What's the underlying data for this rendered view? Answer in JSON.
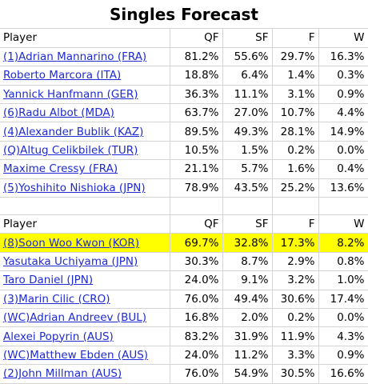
{
  "title": "Singles Forecast",
  "columns": [
    "Player",
    "QF",
    "SF",
    "F",
    "W"
  ],
  "group1": [
    {
      "player": "(1)Adrian Mannarino (FRA)",
      "qf": "81.2%",
      "sf": "55.6%",
      "f": "29.7%",
      "w": "16.3%"
    },
    {
      "player": "Roberto Marcora (ITA)",
      "qf": "18.8%",
      "sf": "6.4%",
      "f": "1.4%",
      "w": "0.3%"
    },
    {
      "player": "Yannick Hanfmann (GER)",
      "qf": "36.3%",
      "sf": "11.1%",
      "f": "3.1%",
      "w": "0.9%"
    },
    {
      "player": "(6)Radu Albot (MDA)",
      "qf": "63.7%",
      "sf": "27.0%",
      "f": "10.7%",
      "w": "4.4%"
    },
    {
      "player": "(4)Alexander Bublik (KAZ)",
      "qf": "89.5%",
      "sf": "49.3%",
      "f": "28.1%",
      "w": "14.9%"
    },
    {
      "player": "(Q)Altug Celikbilek (TUR)",
      "qf": "10.5%",
      "sf": "1.5%",
      "f": "0.2%",
      "w": "0.0%"
    },
    {
      "player": "Maxime Cressy (FRA)",
      "qf": "21.1%",
      "sf": "5.7%",
      "f": "1.6%",
      "w": "0.4%"
    },
    {
      "player": "(5)Yoshihito Nishioka (JPN)",
      "qf": "78.9%",
      "sf": "43.5%",
      "f": "25.2%",
      "w": "13.6%"
    }
  ],
  "group2": [
    {
      "player": "(8)Soon Woo Kwon (KOR)",
      "qf": "69.7%",
      "sf": "32.8%",
      "f": "17.3%",
      "w": "8.2%",
      "highlight": true
    },
    {
      "player": "Yasutaka Uchiyama (JPN)",
      "qf": "30.3%",
      "sf": "8.7%",
      "f": "2.9%",
      "w": "0.8%"
    },
    {
      "player": "Taro Daniel (JPN)",
      "qf": "24.0%",
      "sf": "9.1%",
      "f": "3.2%",
      "w": "1.0%"
    },
    {
      "player": "(3)Marin Cilic (CRO)",
      "qf": "76.0%",
      "sf": "49.4%",
      "f": "30.6%",
      "w": "17.4%"
    },
    {
      "player": "(WC)Adrian Andreev (BUL)",
      "qf": "16.8%",
      "sf": "2.0%",
      "f": "0.2%",
      "w": "0.0%"
    },
    {
      "player": "Alexei Popyrin (AUS)",
      "qf": "83.2%",
      "sf": "31.9%",
      "f": "11.9%",
      "w": "4.3%"
    },
    {
      "player": "(WC)Matthew Ebden (AUS)",
      "qf": "24.0%",
      "sf": "11.2%",
      "f": "3.3%",
      "w": "0.9%"
    },
    {
      "player": "(2)John Millman (AUS)",
      "qf": "76.0%",
      "sf": "54.9%",
      "f": "30.5%",
      "w": "16.6%"
    }
  ],
  "colors": {
    "link": "#1f2bd0",
    "highlight": "#ffff00",
    "grid": "#d4d4d4"
  }
}
